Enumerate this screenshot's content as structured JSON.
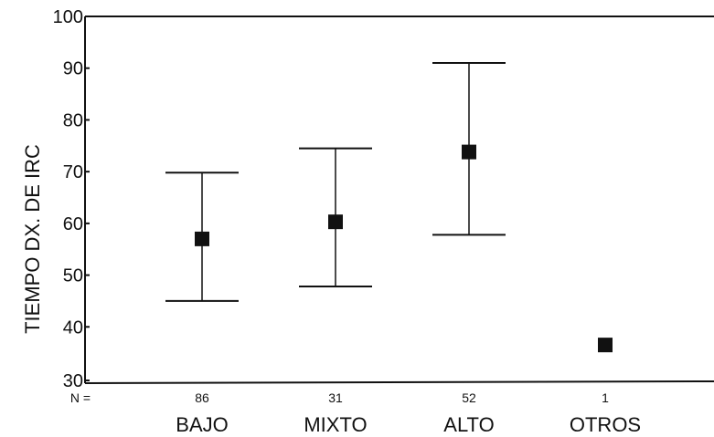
{
  "chart_data": {
    "type": "scatter",
    "subtype": "error-bar",
    "title": "",
    "xlabel": "",
    "ylabel": "TIEMPO DX. DE IRC",
    "ylim": [
      30,
      100
    ],
    "yticks": [
      30,
      40,
      50,
      60,
      70,
      80,
      90,
      100
    ],
    "grid": false,
    "n_prefix": "N =",
    "categories": [
      "BAJO",
      "MIXTO",
      "ALTO",
      "OTROS"
    ],
    "n": [
      "86",
      "31",
      "52",
      "1"
    ],
    "means": [
      57,
      60.3,
      73.8,
      36.5
    ],
    "lower": [
      45,
      47.8,
      57.8,
      null
    ],
    "upper": [
      69.8,
      74.5,
      91,
      null
    ],
    "colors": {
      "marker": "#111111",
      "line": "#111111",
      "frame": "#111111"
    }
  }
}
